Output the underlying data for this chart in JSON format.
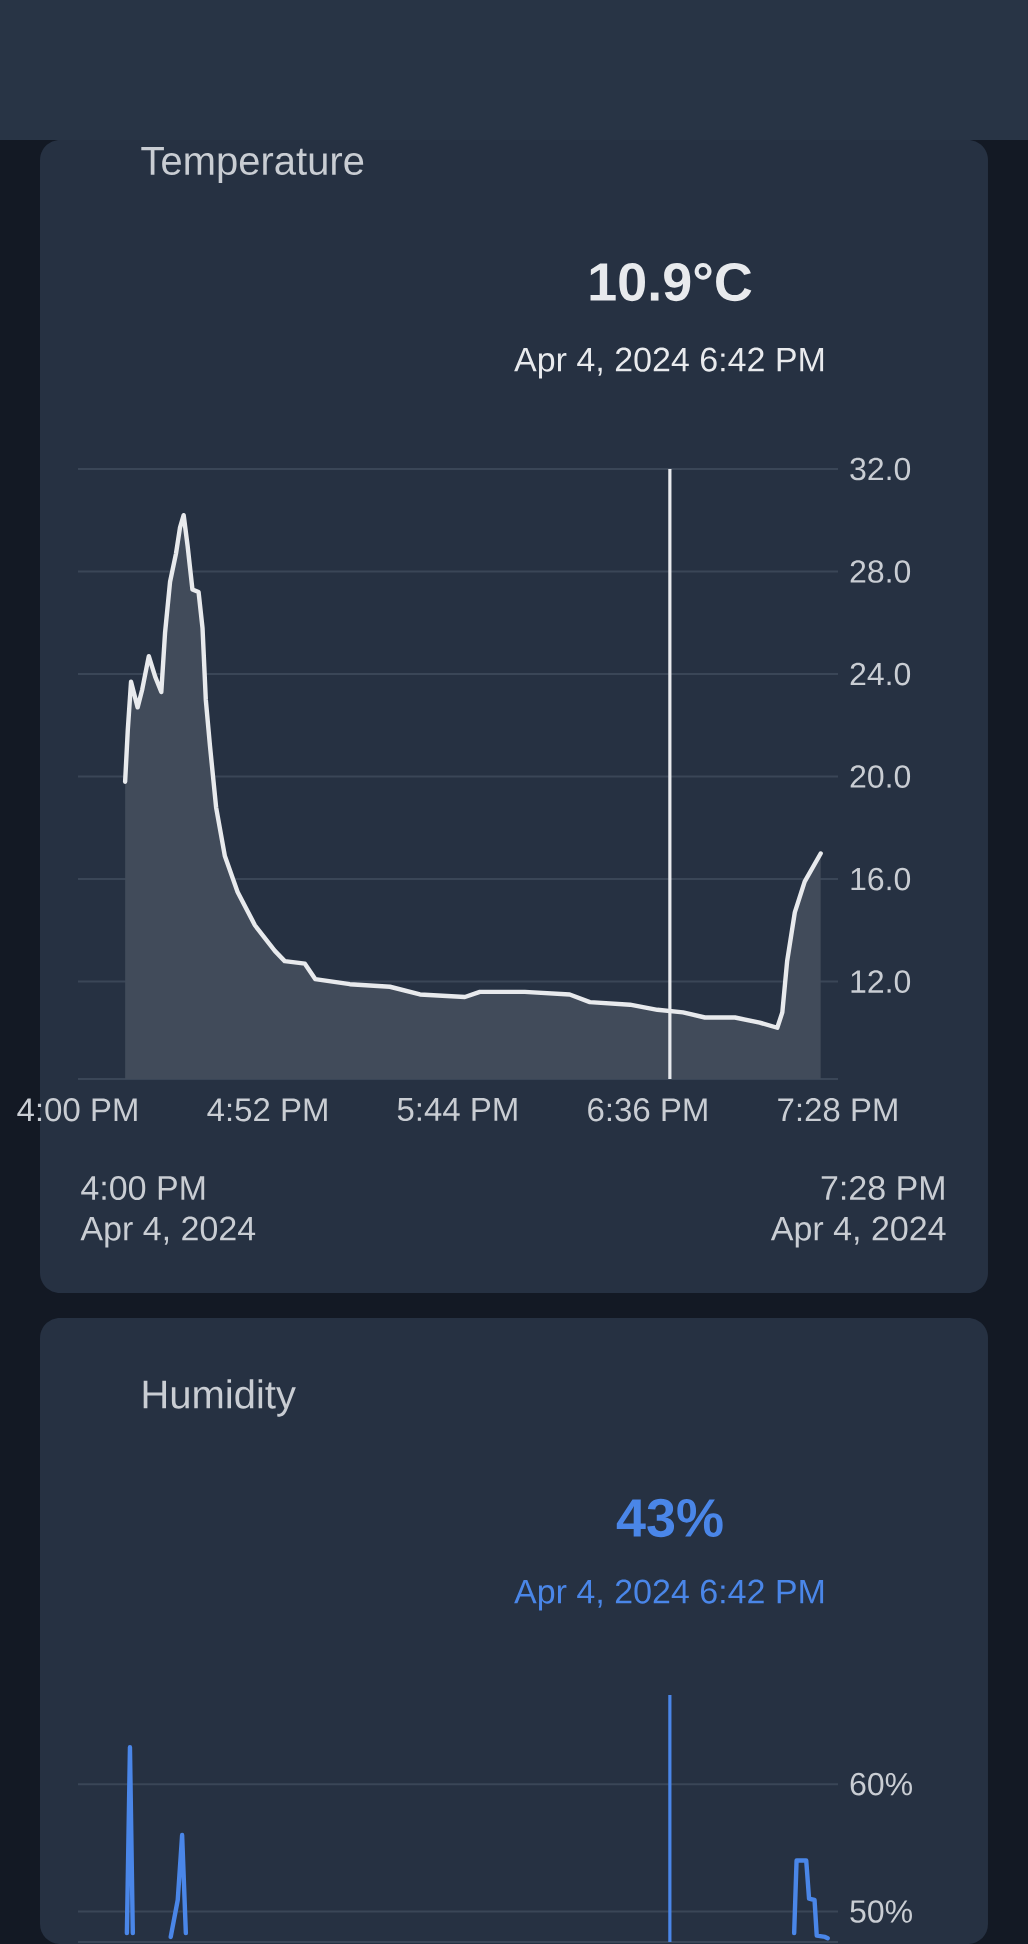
{
  "chart_data": [
    {
      "type": "area",
      "title": "Temperature",
      "annotations": [
        "10.9°C",
        "Apr 4, 2024 6:42 PM",
        "4:00 PM",
        "Apr 4, 2024",
        "7:28 PM",
        "Apr 4, 2024"
      ],
      "x": [
        16.215,
        16.227,
        16.242,
        16.272,
        16.293,
        16.323,
        16.352,
        16.38,
        16.397,
        16.42,
        16.447,
        16.465,
        16.482,
        16.5,
        16.522,
        16.55,
        16.568,
        16.583,
        16.602,
        16.63,
        16.67,
        16.728,
        16.807,
        16.898,
        16.943,
        17.035,
        17.082,
        17.24,
        17.423,
        17.56,
        17.765,
        17.833,
        18.038,
        18.243,
        18.335,
        18.518,
        18.643,
        18.76,
        18.86,
        18.997,
        19.11,
        19.19,
        19.213,
        19.235,
        19.27,
        19.315,
        19.388
      ],
      "series": [
        {
          "color": "#e8eaed",
          "values": [
            19.8,
            21.8,
            23.7,
            22.7,
            23.4,
            24.7,
            23.9,
            23.3,
            25.6,
            27.6,
            28.7,
            29.7,
            30.2,
            29.0,
            27.3,
            27.2,
            25.8,
            23.0,
            21.2,
            18.8,
            16.9,
            15.5,
            14.2,
            13.2,
            12.8,
            12.7,
            12.1,
            11.9,
            11.8,
            11.5,
            11.4,
            11.6,
            11.6,
            11.5,
            11.2,
            11.1,
            10.9,
            10.8,
            10.6,
            10.6,
            10.4,
            10.2,
            10.8,
            12.8,
            14.7,
            15.9,
            17.0
          ]
        }
      ],
      "xlim": [
        16,
        19.467
      ],
      "ylim": [
        8.2,
        32
      ],
      "xticks": [
        {
          "value": 16,
          "label": "4:00 PM"
        },
        {
          "value": 16.867,
          "label": "4:52 PM"
        },
        {
          "value": 17.733,
          "label": "5:44 PM"
        },
        {
          "value": 18.6,
          "label": "6:36 PM"
        },
        {
          "value": 19.467,
          "label": "7:28 PM"
        }
      ],
      "yticks": [
        {
          "value": 12,
          "label": "12.0"
        },
        {
          "value": 16,
          "label": "16.0"
        },
        {
          "value": 20,
          "label": "20.0"
        },
        {
          "value": 24,
          "label": "24.0"
        },
        {
          "value": 28,
          "label": "28.0"
        },
        {
          "value": 32,
          "label": "32.0"
        }
      ],
      "grid": "y",
      "ref_lines": [
        {
          "axis": "x",
          "value": 18.7,
          "color": "#e8eaed"
        }
      ]
    },
    {
      "type": "line",
      "title": "Humidity",
      "annotations": [
        "43%",
        "Apr 4, 2024 6:42 PM"
      ],
      "x": [
        16.223,
        16.237,
        16.25,
        16.3,
        16.423,
        16.455,
        16.475,
        16.492,
        16.6,
        19.267,
        19.278,
        19.322,
        19.335,
        19.36,
        19.37,
        19.408,
        19.42
      ],
      "series": [
        {
          "color": "#4a86e8",
          "values": [
            48.3,
            62.9,
            48.3,
            null,
            48.0,
            50.9,
            56.0,
            48.3,
            null,
            48.3,
            54.0,
            54.0,
            51.0,
            50.9,
            48.1,
            48.0,
            47.9
          ]
        }
      ],
      "xlim": [
        16,
        19.467
      ],
      "ylim": [
        47.6,
        67
      ],
      "yticks": [
        {
          "value": 50,
          "label": "50%"
        },
        {
          "value": 60,
          "label": "60%"
        }
      ],
      "grid": "y",
      "tick_labels": "y",
      "ref_lines": [
        {
          "axis": "x",
          "value": 18.7,
          "color": "#4a86e8"
        }
      ]
    }
  ]
}
